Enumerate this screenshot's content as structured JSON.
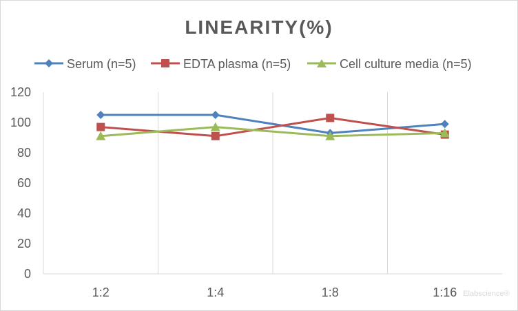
{
  "chart_data": {
    "type": "line",
    "title": "LINEARITY(%)",
    "categories": [
      "1:2",
      "1:4",
      "1:8",
      "1:16"
    ],
    "ylim": [
      0,
      120
    ],
    "yticks": [
      0,
      20,
      40,
      60,
      80,
      100,
      120
    ],
    "grid": "vertical",
    "legend_position": "top",
    "series": [
      {
        "name": "Serum (n=5)",
        "values": [
          105,
          105,
          93,
          99
        ],
        "color": "#4f81bd",
        "marker": "diamond"
      },
      {
        "name": "EDTA plasma (n=5)",
        "values": [
          97,
          91,
          103,
          92
        ],
        "color": "#c0504d",
        "marker": "square"
      },
      {
        "name": "Cell culture media (n=5)",
        "values": [
          91,
          97,
          91,
          93
        ],
        "color": "#9bbb59",
        "marker": "triangle"
      }
    ]
  },
  "watermark": "Elabscience®"
}
